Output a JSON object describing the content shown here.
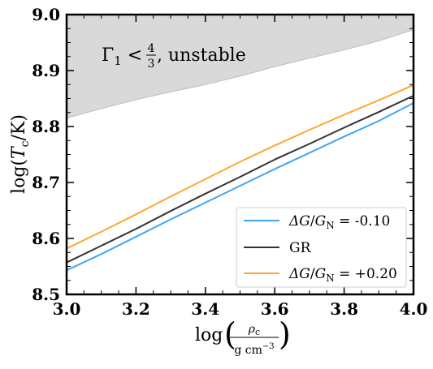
{
  "chart_data": {
    "type": "line",
    "xlabel": "log(ρc / g cm^-3)",
    "ylabel": "log(Tc/K)",
    "xlim": [
      3.0,
      4.0
    ],
    "ylim": [
      8.5,
      9.0
    ],
    "x_ticks": [
      "3.0",
      "3.2",
      "3.4",
      "3.6",
      "3.8",
      "4.0"
    ],
    "y_ticks": [
      "8.5",
      "8.6",
      "8.7",
      "8.8",
      "8.9",
      "9.0"
    ],
    "x_tick_values": [
      3.0,
      3.2,
      3.4,
      3.6,
      3.8,
      4.0
    ],
    "y_tick_values": [
      8.5,
      8.6,
      8.7,
      8.8,
      8.9,
      9.0
    ],
    "grid": false,
    "legend_position": "bottom-right",
    "annotation": {
      "text": "Γ1 < 4/3, unstable",
      "gamma": "Γ",
      "sub": "1",
      "lt": " < ",
      "num": "4",
      "den": "3",
      "tail": ", unstable"
    },
    "unstable_region": {
      "color": "#d9d9d9",
      "edge_color": "#bdbdbd",
      "x": [
        3.0,
        3.1,
        3.2,
        3.3,
        3.4,
        3.5,
        3.6,
        3.7,
        3.8,
        3.9,
        4.0
      ],
      "y_lower": [
        8.815,
        8.832,
        8.848,
        8.862,
        8.875,
        8.89,
        8.907,
        8.922,
        8.937,
        8.953,
        8.973
      ],
      "y_upper": 9.0
    },
    "series": [
      {
        "name": "ΔG/G_N = -0.10",
        "legend_label": "-0.10",
        "color": "#42a5f5",
        "x": [
          3.0,
          3.1,
          3.2,
          3.3,
          3.4,
          3.5,
          3.6,
          3.7,
          3.8,
          3.9,
          4.0
        ],
        "y": [
          8.543,
          8.572,
          8.603,
          8.634,
          8.664,
          8.694,
          8.724,
          8.753,
          8.782,
          8.81,
          8.842
        ]
      },
      {
        "name": "GR",
        "legend_label": "GR",
        "color": "#333333",
        "x": [
          3.0,
          3.1,
          3.2,
          3.3,
          3.4,
          3.5,
          3.6,
          3.7,
          3.8,
          3.9,
          4.0
        ],
        "y": [
          8.557,
          8.587,
          8.617,
          8.649,
          8.68,
          8.71,
          8.741,
          8.769,
          8.798,
          8.826,
          8.855
        ]
      },
      {
        "name": "ΔG/G_N = +0.20",
        "legend_label": "+0.20",
        "color": "#ffa630",
        "x": [
          3.0,
          3.1,
          3.2,
          3.3,
          3.4,
          3.5,
          3.6,
          3.7,
          3.8,
          3.9,
          4.0
        ],
        "y": [
          8.582,
          8.612,
          8.643,
          8.675,
          8.706,
          8.737,
          8.766,
          8.794,
          8.821,
          8.847,
          8.874
        ]
      }
    ]
  }
}
